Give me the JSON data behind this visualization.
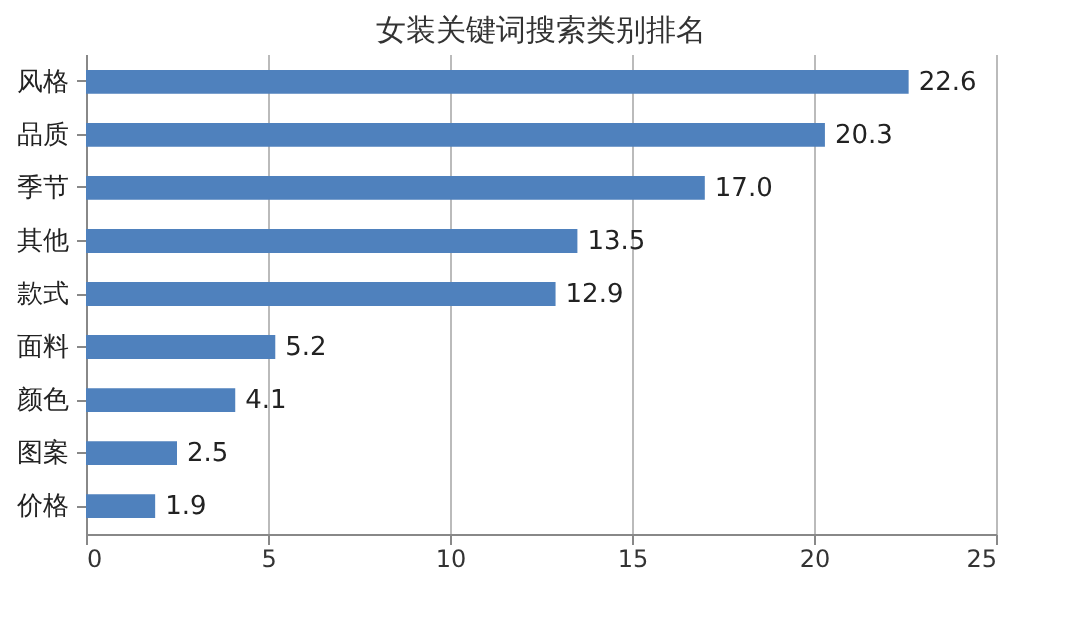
{
  "chart_data": {
    "type": "bar",
    "orientation": "horizontal",
    "title": "女装关键词搜索类别排名",
    "categories": [
      "风格",
      "品质",
      "季节",
      "其他",
      "款式",
      "面料",
      "颜色",
      "图案",
      "价格"
    ],
    "values": [
      22.6,
      20.3,
      17.0,
      13.5,
      12.9,
      5.2,
      4.1,
      2.5,
      1.9
    ],
    "value_labels": [
      "22.6",
      "20.3",
      "17.0",
      "13.5",
      "12.9",
      "5.2",
      "4.1",
      "2.5",
      "1.9"
    ],
    "color": "#4f81bd",
    "xlim": [
      0,
      25
    ],
    "xticks": [
      0,
      5,
      10,
      15,
      20,
      25
    ],
    "grid": "x"
  }
}
